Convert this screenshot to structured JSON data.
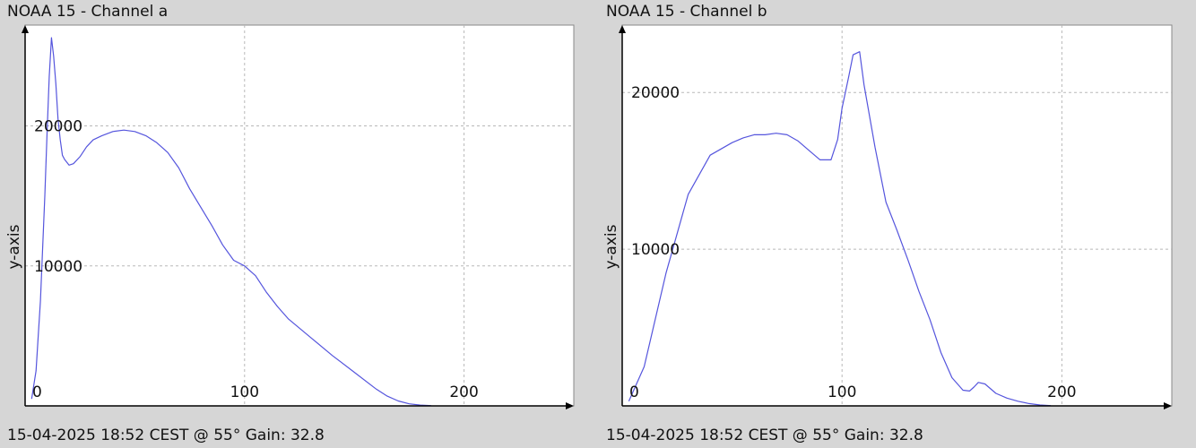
{
  "colors": {
    "background": "#d6d6d6",
    "plot": "#ffffff",
    "line": "#5555dd",
    "grid": "#b8b8b8",
    "axis": "#000000"
  },
  "chart_data": [
    {
      "type": "line",
      "title": "NOAA 15 - Channel a",
      "footer": "15-04-2025 18:52 CEST @ 55° Gain: 32.8",
      "ylabel": "y-axis",
      "xlim": [
        0,
        250
      ],
      "ylim": [
        0,
        27200
      ],
      "x_ticks": [
        0,
        100,
        200
      ],
      "y_ticks": [
        10000,
        20000
      ],
      "grid": true,
      "x": [
        3,
        5,
        7,
        9,
        10,
        11,
        12,
        13,
        14,
        15,
        16,
        17,
        18,
        20,
        22,
        25,
        28,
        31,
        35,
        40,
        45,
        50,
        55,
        60,
        65,
        70,
        75,
        80,
        85,
        90,
        95,
        100,
        105,
        110,
        115,
        120,
        130,
        140,
        150,
        160,
        165,
        170,
        175,
        180,
        183,
        185
      ],
      "y": [
        500,
        2500,
        7500,
        15000,
        19500,
        23500,
        26300,
        25000,
        23000,
        20500,
        19000,
        17900,
        17600,
        17200,
        17300,
        17800,
        18500,
        19000,
        19300,
        19600,
        19700,
        19600,
        19300,
        18800,
        18100,
        17000,
        15500,
        14200,
        12900,
        11500,
        10400,
        10000,
        9300,
        8100,
        7100,
        6200,
        4900,
        3600,
        2400,
        1200,
        700,
        350,
        150,
        60,
        30,
        20
      ]
    },
    {
      "type": "line",
      "title": "NOAA 15 - Channel b",
      "footer": "15-04-2025 18:52 CEST @ 55° Gain: 32.8",
      "ylabel": "y-axis",
      "xlim": [
        0,
        250
      ],
      "ylim": [
        0,
        24300
      ],
      "x_ticks": [
        0,
        100,
        200
      ],
      "y_ticks": [
        10000,
        20000
      ],
      "grid": true,
      "x": [
        3,
        10,
        20,
        30,
        40,
        50,
        55,
        60,
        65,
        70,
        75,
        80,
        85,
        90,
        95,
        98,
        100,
        103,
        105,
        108,
        110,
        115,
        120,
        125,
        130,
        135,
        140,
        145,
        150,
        155,
        158,
        160,
        162,
        165,
        170,
        175,
        180,
        185,
        190,
        195
      ],
      "y": [
        300,
        2500,
        8500,
        13500,
        16000,
        16800,
        17100,
        17300,
        17300,
        17400,
        17300,
        16900,
        16300,
        15700,
        15700,
        17000,
        19000,
        21000,
        22400,
        22600,
        20500,
        16500,
        13000,
        11200,
        9300,
        7300,
        5500,
        3400,
        1800,
        1000,
        950,
        1200,
        1500,
        1400,
        800,
        500,
        300,
        150,
        60,
        20
      ]
    }
  ]
}
